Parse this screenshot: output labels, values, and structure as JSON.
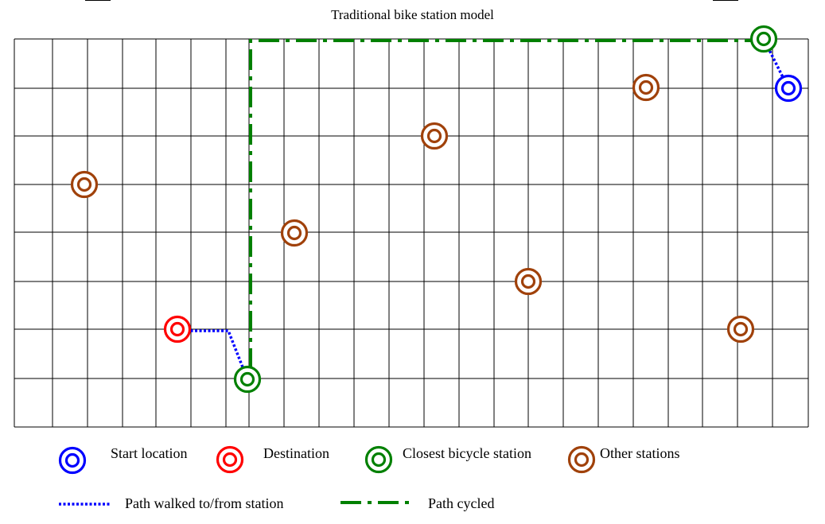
{
  "title": "Traditional bike station model",
  "colors": {
    "grid": "#000000",
    "start": "#0000ff",
    "destination": "#ff0000",
    "closest": "#008000",
    "other": "#a0410a",
    "walk_path": "#0000ff",
    "cycle_path": "#008000"
  },
  "legend": {
    "start_label": "Start location",
    "destination_label": "Destination",
    "closest_label": "Closest bicycle station",
    "other_label": "Other stations",
    "walk_label": "Path walked to/from station",
    "cycle_label": "Path cycled"
  },
  "icons": {
    "station_marker": "concentric-circles-icon"
  },
  "diagram": {
    "stations": [
      {
        "id": "start",
        "kind": "start",
        "label": "Start location"
      },
      {
        "id": "closest-start",
        "kind": "closest",
        "label": "Closest bicycle station"
      },
      {
        "id": "destination",
        "kind": "destination",
        "label": "Destination"
      },
      {
        "id": "closest-dest",
        "kind": "closest",
        "label": "Closest bicycle station"
      },
      {
        "id": "other-1",
        "kind": "other",
        "label": "Other stations"
      },
      {
        "id": "other-2",
        "kind": "other",
        "label": "Other stations"
      },
      {
        "id": "other-3",
        "kind": "other",
        "label": "Other stations"
      },
      {
        "id": "other-4",
        "kind": "other",
        "label": "Other stations"
      },
      {
        "id": "other-5",
        "kind": "other",
        "label": "Other stations"
      },
      {
        "id": "other-6",
        "kind": "other",
        "label": "Other stations"
      }
    ],
    "paths": [
      {
        "id": "walk-start",
        "kind": "walk",
        "from": "start",
        "to": "closest-start"
      },
      {
        "id": "cycle",
        "kind": "cycle",
        "from": "closest-start",
        "to": "closest-dest"
      },
      {
        "id": "walk-dest",
        "kind": "walk",
        "from": "closest-dest",
        "to": "destination"
      }
    ]
  }
}
